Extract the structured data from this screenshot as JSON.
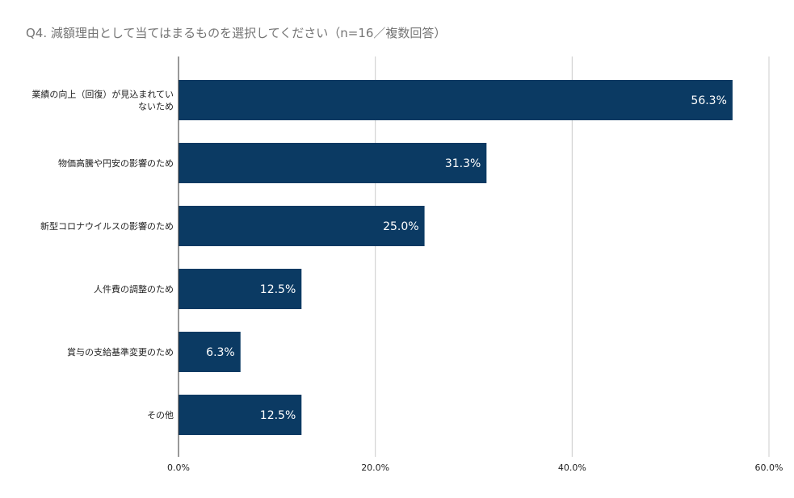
{
  "chart_data": {
    "type": "bar",
    "orientation": "horizontal",
    "title": "Q4. 減額理由として当てはまるものを選択してください（n=16／複数回答）",
    "categories": [
      [
        "業績の向上（回復）が見込まれてい",
        "ないため"
      ],
      [
        "物価高騰や円安の影響のため"
      ],
      [
        "新型コロナウイルスの影響のため"
      ],
      [
        "人件費の調整のため"
      ],
      [
        "賞与の支給基準変更のため"
      ],
      [
        "その他"
      ]
    ],
    "values": [
      56.3,
      31.3,
      25.0,
      12.5,
      6.3,
      12.5
    ],
    "data_labels": [
      "56.3%",
      "31.3%",
      "25.0%",
      "12.5%",
      "6.3%",
      "12.5%"
    ],
    "xlim": [
      0,
      60
    ],
    "x_ticks": [
      0,
      20,
      40,
      60
    ],
    "x_tick_labels": [
      "0.0%",
      "20.0%",
      "40.0%",
      "60.0%"
    ],
    "grid": true,
    "bar_color": "#0b3a63",
    "grid_color": "#cccccc",
    "axis_color": "#333333"
  }
}
